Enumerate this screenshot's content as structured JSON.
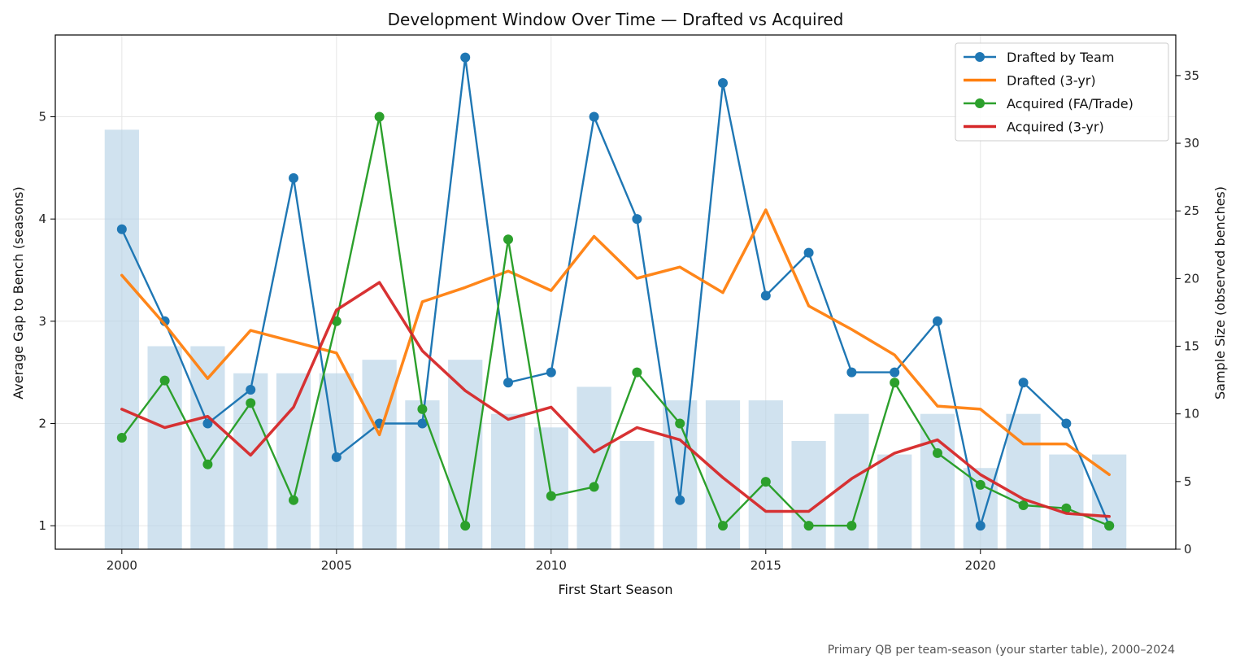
{
  "chart_data": {
    "type": "line",
    "title": "Development Window Over Time — Drafted vs Acquired",
    "xlabel": "First Start Season",
    "ylabel": "Average Gap to Bench (seasons)",
    "y2label": "Sample Size (observed benches)",
    "footnote": "Primary QB per team-season (your starter table), 2000–2024",
    "x": [
      2000,
      2001,
      2002,
      2003,
      2004,
      2005,
      2006,
      2007,
      2008,
      2009,
      2010,
      2011,
      2012,
      2013,
      2014,
      2015,
      2016,
      2017,
      2018,
      2019,
      2020,
      2021,
      2022,
      2023
    ],
    "xlim": [
      1998.45,
      2024.55
    ],
    "ylim": [
      0.77,
      5.8
    ],
    "y2lim": [
      0,
      38
    ],
    "xticks": [
      "2000",
      "2005",
      "2010",
      "2015",
      "2020"
    ],
    "yticks": [
      "1",
      "2",
      "3",
      "4",
      "5"
    ],
    "y2ticks": [
      "0",
      "5",
      "10",
      "15",
      "20",
      "25",
      "30",
      "35"
    ],
    "grid": true,
    "legend_position": "top-right",
    "bars": {
      "name": "Sample Size",
      "axis": "right",
      "color": "#b7d2e6",
      "values": [
        31,
        15,
        15,
        13,
        13,
        13,
        14,
        11,
        14,
        10,
        9,
        12,
        8,
        11,
        11,
        11,
        8,
        10,
        7,
        10,
        6,
        10,
        7,
        7
      ]
    },
    "series": [
      {
        "name": "Drafted by Team",
        "color": "#1f77b4",
        "style": "line-marker",
        "values": [
          3.9,
          3.0,
          2.0,
          2.33,
          4.4,
          1.67,
          2.0,
          2.0,
          5.58,
          2.4,
          2.5,
          5.0,
          4.0,
          1.25,
          5.33,
          3.25,
          3.67,
          2.5,
          2.5,
          3.0,
          1.0,
          2.4,
          2.0,
          1.0
        ]
      },
      {
        "name": "Drafted (3-yr)",
        "color": "#ff7f0e",
        "style": "line-thick",
        "values": [
          3.45,
          2.97,
          2.44,
          2.91,
          2.8,
          2.69,
          1.89,
          3.19,
          3.33,
          3.49,
          3.3,
          3.83,
          3.42,
          3.53,
          3.28,
          4.09,
          3.15,
          2.92,
          2.67,
          2.17,
          2.14,
          1.8,
          1.8,
          1.5
        ]
      },
      {
        "name": "Acquired (FA/Trade)",
        "color": "#2ca02c",
        "style": "line-marker",
        "values": [
          1.86,
          2.42,
          1.6,
          2.2,
          1.25,
          3.0,
          5.0,
          2.14,
          1.0,
          3.8,
          1.29,
          1.38,
          2.5,
          2.0,
          1.0,
          1.43,
          1.0,
          1.0,
          2.4,
          1.71,
          1.4,
          1.2,
          1.17,
          1.0
        ]
      },
      {
        "name": "Acquired (3-yr)",
        "color": "#d62728",
        "style": "line-thick",
        "values": [
          2.14,
          1.96,
          2.07,
          1.69,
          2.16,
          3.11,
          3.38,
          2.71,
          2.32,
          2.04,
          2.16,
          1.72,
          1.96,
          1.84,
          1.47,
          1.14,
          1.14,
          1.46,
          1.71,
          1.84,
          1.5,
          1.26,
          1.12,
          1.09
        ]
      }
    ]
  }
}
